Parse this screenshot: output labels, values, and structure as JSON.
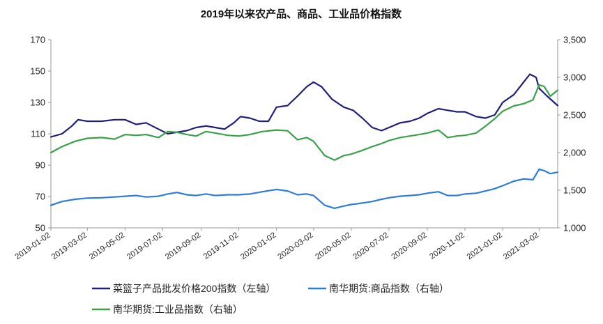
{
  "chart_data": {
    "type": "line",
    "title": "2019年以来农产品、商品、工业品价格指数",
    "xlabel": "",
    "ylabel": "",
    "x_range": [
      "2019-01-02",
      "2021-04-01"
    ],
    "x_ticks": [
      "2019-01-02",
      "2019-03-02",
      "2019-05-02",
      "2019-07-02",
      "2019-09-02",
      "2019-11-02",
      "2020-01-02",
      "2020-03-02",
      "2020-05-02",
      "2020-07-02",
      "2020-09-02",
      "2020-11-02",
      "2021-01-02",
      "2021-03-02"
    ],
    "y_left": {
      "min": 50,
      "max": 170,
      "ticks": [
        "50",
        "70",
        "90",
        "110",
        "130",
        "150",
        "170"
      ]
    },
    "y_right": {
      "min": 1000,
      "max": 3500,
      "ticks": [
        "1,000",
        "1,500",
        "2,000",
        "2,500",
        "3,000",
        "3,500"
      ]
    },
    "grid": false,
    "legend_position": "bottom",
    "series": [
      {
        "name": "菜篮子产品批发价格200指数（左轴）",
        "axis": "left",
        "color": "#1f1f7a",
        "points": [
          [
            "2019-01-02",
            108
          ],
          [
            "2019-01-20",
            110
          ],
          [
            "2019-02-05",
            115
          ],
          [
            "2019-02-15",
            119
          ],
          [
            "2019-03-02",
            118
          ],
          [
            "2019-03-25",
            118
          ],
          [
            "2019-04-15",
            119
          ],
          [
            "2019-05-02",
            119
          ],
          [
            "2019-05-20",
            116
          ],
          [
            "2019-06-05",
            117
          ],
          [
            "2019-06-25",
            113
          ],
          [
            "2019-07-10",
            110
          ],
          [
            "2019-07-25",
            111
          ],
          [
            "2019-08-10",
            112
          ],
          [
            "2019-08-25",
            114
          ],
          [
            "2019-09-10",
            115
          ],
          [
            "2019-09-25",
            114
          ],
          [
            "2019-10-10",
            113
          ],
          [
            "2019-10-25",
            117
          ],
          [
            "2019-11-05",
            121
          ],
          [
            "2019-11-20",
            120
          ],
          [
            "2019-12-05",
            118
          ],
          [
            "2019-12-20",
            118
          ],
          [
            "2020-01-02",
            127
          ],
          [
            "2020-01-20",
            128
          ],
          [
            "2020-02-05",
            134
          ],
          [
            "2020-02-20",
            140
          ],
          [
            "2020-03-02",
            143
          ],
          [
            "2020-03-15",
            140
          ],
          [
            "2020-04-01",
            132
          ],
          [
            "2020-04-20",
            127
          ],
          [
            "2020-05-05",
            125
          ],
          [
            "2020-05-20",
            120
          ],
          [
            "2020-06-05",
            114
          ],
          [
            "2020-06-20",
            112
          ],
          [
            "2020-07-02",
            114
          ],
          [
            "2020-07-20",
            117
          ],
          [
            "2020-08-05",
            118
          ],
          [
            "2020-08-20",
            120
          ],
          [
            "2020-09-02",
            123
          ],
          [
            "2020-09-20",
            126
          ],
          [
            "2020-10-05",
            125
          ],
          [
            "2020-10-20",
            124
          ],
          [
            "2020-11-02",
            124
          ],
          [
            "2020-11-20",
            121
          ],
          [
            "2020-12-05",
            120
          ],
          [
            "2020-12-20",
            122
          ],
          [
            "2021-01-02",
            130
          ],
          [
            "2021-01-20",
            135
          ],
          [
            "2021-02-05",
            143
          ],
          [
            "2021-02-15",
            148
          ],
          [
            "2021-02-25",
            146
          ],
          [
            "2021-03-02",
            139
          ],
          [
            "2021-03-15",
            134
          ],
          [
            "2021-04-01",
            128
          ]
        ]
      },
      {
        "name": "南华期货:商品指数（右轴）",
        "axis": "right",
        "color": "#2e7be0",
        "points": [
          [
            "2019-01-02",
            1300
          ],
          [
            "2019-01-20",
            1350
          ],
          [
            "2019-02-10",
            1380
          ],
          [
            "2019-03-02",
            1395
          ],
          [
            "2019-03-25",
            1400
          ],
          [
            "2019-04-15",
            1410
          ],
          [
            "2019-05-02",
            1420
          ],
          [
            "2019-05-20",
            1430
          ],
          [
            "2019-06-05",
            1410
          ],
          [
            "2019-06-25",
            1420
          ],
          [
            "2019-07-10",
            1450
          ],
          [
            "2019-07-25",
            1470
          ],
          [
            "2019-08-10",
            1440
          ],
          [
            "2019-08-25",
            1430
          ],
          [
            "2019-09-10",
            1450
          ],
          [
            "2019-09-25",
            1430
          ],
          [
            "2019-10-15",
            1440
          ],
          [
            "2019-11-02",
            1440
          ],
          [
            "2019-11-20",
            1450
          ],
          [
            "2019-12-10",
            1480
          ],
          [
            "2020-01-02",
            1510
          ],
          [
            "2020-01-20",
            1490
          ],
          [
            "2020-02-05",
            1440
          ],
          [
            "2020-02-20",
            1450
          ],
          [
            "2020-03-02",
            1430
          ],
          [
            "2020-03-20",
            1300
          ],
          [
            "2020-04-05",
            1260
          ],
          [
            "2020-04-20",
            1290
          ],
          [
            "2020-05-02",
            1310
          ],
          [
            "2020-05-20",
            1330
          ],
          [
            "2020-06-05",
            1350
          ],
          [
            "2020-06-20",
            1380
          ],
          [
            "2020-07-02",
            1400
          ],
          [
            "2020-07-20",
            1420
          ],
          [
            "2020-08-05",
            1430
          ],
          [
            "2020-08-20",
            1440
          ],
          [
            "2020-09-02",
            1460
          ],
          [
            "2020-09-20",
            1480
          ],
          [
            "2020-10-05",
            1430
          ],
          [
            "2020-10-20",
            1430
          ],
          [
            "2020-11-02",
            1450
          ],
          [
            "2020-11-20",
            1460
          ],
          [
            "2020-12-05",
            1490
          ],
          [
            "2020-12-20",
            1520
          ],
          [
            "2021-01-02",
            1560
          ],
          [
            "2021-01-20",
            1620
          ],
          [
            "2021-02-05",
            1650
          ],
          [
            "2021-02-20",
            1640
          ],
          [
            "2021-03-02",
            1780
          ],
          [
            "2021-03-10",
            1760
          ],
          [
            "2021-03-20",
            1720
          ],
          [
            "2021-04-01",
            1740
          ]
        ]
      },
      {
        "name": "南华期货:工业品指数（右轴）",
        "axis": "right",
        "color": "#3aa14a",
        "points": [
          [
            "2019-01-02",
            2000
          ],
          [
            "2019-01-20",
            2080
          ],
          [
            "2019-02-10",
            2150
          ],
          [
            "2019-03-02",
            2190
          ],
          [
            "2019-03-25",
            2200
          ],
          [
            "2019-04-15",
            2180
          ],
          [
            "2019-05-02",
            2240
          ],
          [
            "2019-05-20",
            2230
          ],
          [
            "2019-06-05",
            2240
          ],
          [
            "2019-06-25",
            2200
          ],
          [
            "2019-07-10",
            2280
          ],
          [
            "2019-07-25",
            2270
          ],
          [
            "2019-08-10",
            2240
          ],
          [
            "2019-08-25",
            2220
          ],
          [
            "2019-09-10",
            2280
          ],
          [
            "2019-09-25",
            2260
          ],
          [
            "2019-10-15",
            2230
          ],
          [
            "2019-11-02",
            2220
          ],
          [
            "2019-11-20",
            2240
          ],
          [
            "2019-12-10",
            2280
          ],
          [
            "2020-01-02",
            2300
          ],
          [
            "2020-01-20",
            2290
          ],
          [
            "2020-02-05",
            2170
          ],
          [
            "2020-02-20",
            2200
          ],
          [
            "2020-03-02",
            2150
          ],
          [
            "2020-03-20",
            1960
          ],
          [
            "2020-04-05",
            1900
          ],
          [
            "2020-04-20",
            1960
          ],
          [
            "2020-05-02",
            1980
          ],
          [
            "2020-05-20",
            2030
          ],
          [
            "2020-06-05",
            2080
          ],
          [
            "2020-06-20",
            2120
          ],
          [
            "2020-07-02",
            2160
          ],
          [
            "2020-07-20",
            2200
          ],
          [
            "2020-08-05",
            2220
          ],
          [
            "2020-08-20",
            2240
          ],
          [
            "2020-09-02",
            2260
          ],
          [
            "2020-09-20",
            2300
          ],
          [
            "2020-10-05",
            2200
          ],
          [
            "2020-10-20",
            2220
          ],
          [
            "2020-11-02",
            2230
          ],
          [
            "2020-11-20",
            2260
          ],
          [
            "2020-12-05",
            2350
          ],
          [
            "2020-12-20",
            2450
          ],
          [
            "2021-01-02",
            2550
          ],
          [
            "2021-01-20",
            2620
          ],
          [
            "2021-02-05",
            2650
          ],
          [
            "2021-02-20",
            2700
          ],
          [
            "2021-03-02",
            2900
          ],
          [
            "2021-03-10",
            2880
          ],
          [
            "2021-03-20",
            2750
          ],
          [
            "2021-04-01",
            2830
          ]
        ]
      }
    ]
  }
}
